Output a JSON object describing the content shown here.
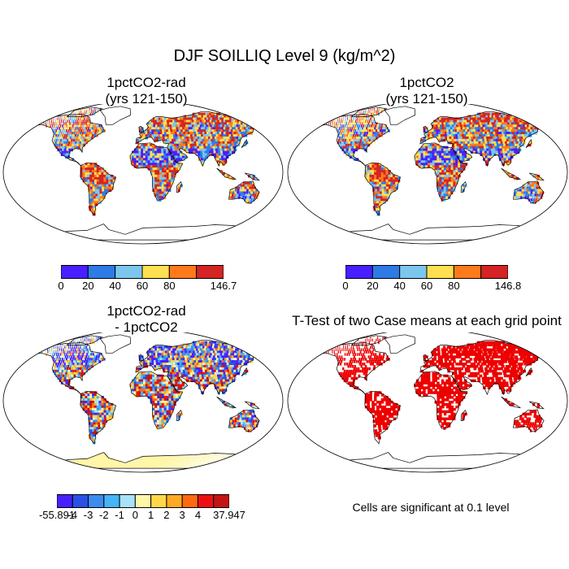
{
  "figure": {
    "title": "DJF SOILLIQ Level 9 (kg/m^2)"
  },
  "panels": [
    {
      "id": "rad",
      "title_line1": "1pctCO2-rad",
      "title_line2": "(yrs 121-150)",
      "colorbar": {
        "colors": [
          "#4a1fff",
          "#2e7be6",
          "#7cc6ee",
          "#ffe050",
          "#ff7a1a",
          "#d42424"
        ],
        "ticks": [
          "0",
          "20",
          "40",
          "60",
          "80",
          "146.7"
        ]
      }
    },
    {
      "id": "ctl",
      "title_line1": "1pctCO2",
      "title_line2": "(yrs 121-150)",
      "colorbar": {
        "colors": [
          "#4a1fff",
          "#2e7be6",
          "#7cc6ee",
          "#ffe050",
          "#ff7a1a",
          "#d42424"
        ],
        "ticks": [
          "0",
          "20",
          "40",
          "60",
          "80",
          "146.8"
        ]
      }
    },
    {
      "id": "diff",
      "title_line1": "1pctCO2-rad",
      "title_line2": "- 1pctCO2",
      "colorbar": {
        "colors": [
          "#4a1fff",
          "#2a50e6",
          "#3c8cf0",
          "#46b4f5",
          "#a8e2f8",
          "#fff6a8",
          "#ffd84a",
          "#ffaa22",
          "#ff6a10",
          "#ee1010",
          "#c41414"
        ],
        "ticks": [
          "-55.891",
          "-4",
          "-3",
          "-2",
          "-1",
          "0",
          "1",
          "2",
          "3",
          "4",
          "37.947"
        ]
      }
    },
    {
      "id": "ttest",
      "title_line1": "T-Test of two Case means at each grid point",
      "note": "Cells are significant at 0.1 level",
      "sig_color": "#ee0000"
    }
  ],
  "chart_data": [
    {
      "type": "heatmap",
      "title": "1pctCO2-rad (yrs 121-150)",
      "colorbar_ticks": [
        0,
        20,
        40,
        60,
        80,
        146.7
      ]
    },
    {
      "type": "heatmap",
      "title": "1pctCO2 (yrs 121-150)",
      "colorbar_ticks": [
        0,
        20,
        40,
        60,
        80,
        146.8
      ]
    },
    {
      "type": "heatmap",
      "title": "1pctCO2-rad - 1pctCO2",
      "colorbar_ticks": [
        -55.891,
        -4,
        -3,
        -2,
        -1,
        0,
        1,
        2,
        3,
        4,
        37.947
      ]
    },
    {
      "type": "heatmap",
      "title": "T-Test of two Case means at each grid point"
    }
  ]
}
